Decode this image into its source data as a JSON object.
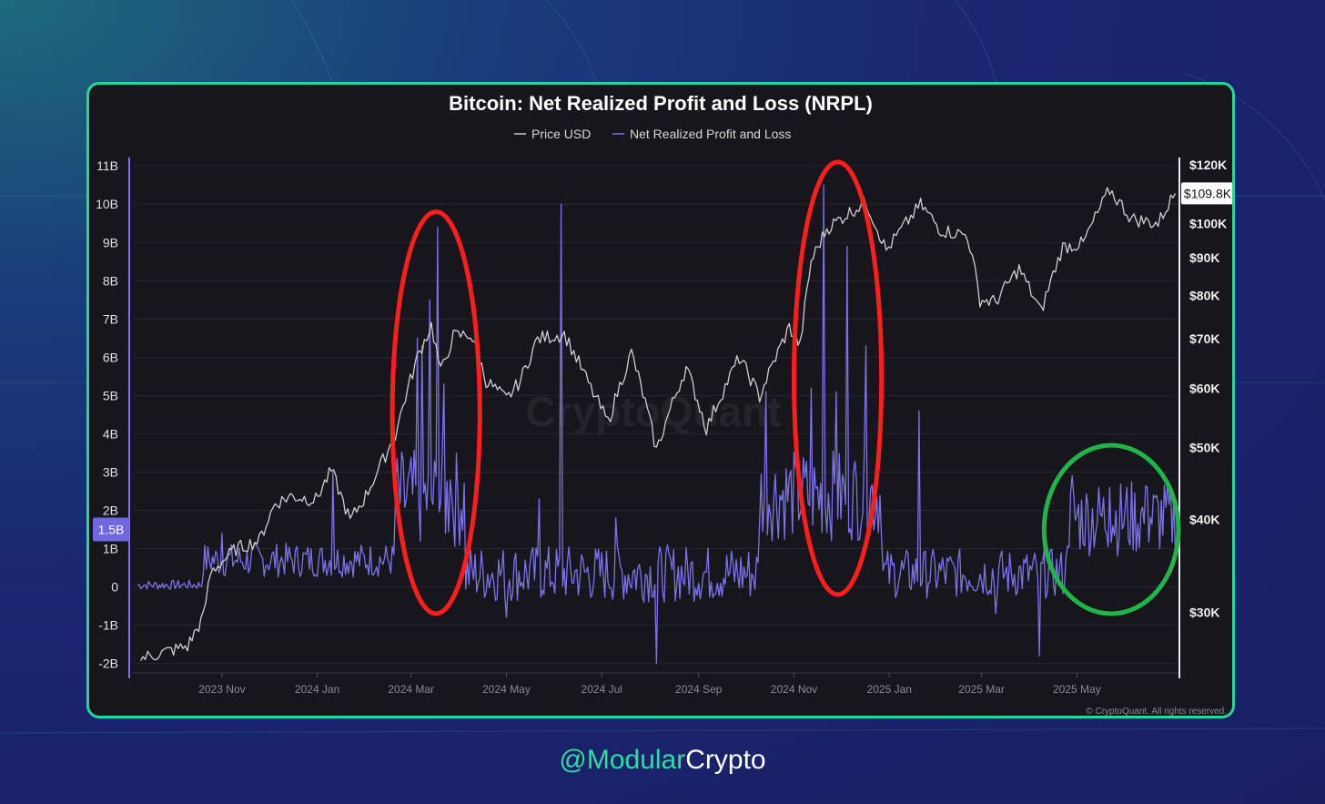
{
  "chart_data": {
    "type": "line",
    "title": "Bitcoin: Net Realized Profit and Loss (NRPL)",
    "legend_position": "top-center",
    "series": [
      {
        "name": "Price USD",
        "color": "#cfcfcf",
        "axis": "right",
        "points": [
          [
            "2023-09-10",
            26000
          ],
          [
            "2023-09-25",
            26500
          ],
          [
            "2023-10-10",
            27000
          ],
          [
            "2023-10-20",
            29500
          ],
          [
            "2023-10-25",
            34000
          ],
          [
            "2023-11-10",
            36500
          ],
          [
            "2023-11-25",
            37500
          ],
          [
            "2023-12-05",
            42000
          ],
          [
            "2023-12-15",
            43000
          ],
          [
            "2023-12-31",
            42500
          ],
          [
            "2024-01-10",
            46500
          ],
          [
            "2024-01-22",
            39800
          ],
          [
            "2024-02-01",
            43000
          ],
          [
            "2024-02-12",
            48000
          ],
          [
            "2024-02-20",
            52000
          ],
          [
            "2024-02-28",
            60000
          ],
          [
            "2024-03-05",
            66000
          ],
          [
            "2024-03-14",
            73000
          ],
          [
            "2024-03-20",
            63000
          ],
          [
            "2024-03-28",
            70500
          ],
          [
            "2024-04-08",
            71000
          ],
          [
            "2024-04-18",
            61500
          ],
          [
            "2024-05-01",
            58000
          ],
          [
            "2024-05-10",
            61500
          ],
          [
            "2024-05-21",
            70000
          ],
          [
            "2024-06-07",
            71000
          ],
          [
            "2024-06-24",
            60000
          ],
          [
            "2024-07-05",
            54000
          ],
          [
            "2024-07-20",
            67000
          ],
          [
            "2024-08-05",
            49500
          ],
          [
            "2024-08-24",
            64000
          ],
          [
            "2024-09-06",
            53000
          ],
          [
            "2024-09-27",
            66000
          ],
          [
            "2024-10-10",
            58500
          ],
          [
            "2024-10-29",
            72500
          ],
          [
            "2024-11-05",
            68500
          ],
          [
            "2024-11-12",
            89000
          ],
          [
            "2024-11-22",
            98500
          ],
          [
            "2024-12-05",
            103000
          ],
          [
            "2024-12-17",
            107000
          ],
          [
            "2024-12-30",
            92000
          ],
          [
            "2025-01-07",
            97000
          ],
          [
            "2025-01-21",
            106000
          ],
          [
            "2025-02-03",
            98000
          ],
          [
            "2025-02-20",
            96500
          ],
          [
            "2025-02-28",
            79000
          ],
          [
            "2025-03-10",
            78500
          ],
          [
            "2025-03-25",
            87000
          ],
          [
            "2025-04-08",
            76000
          ],
          [
            "2025-04-22",
            93000
          ],
          [
            "2025-05-05",
            94000
          ],
          [
            "2025-05-22",
            111000
          ],
          [
            "2025-06-05",
            101500
          ],
          [
            "2025-06-22",
            100000
          ],
          [
            "2025-06-30",
            107500
          ],
          [
            "2025-07-03",
            109800
          ]
        ]
      },
      {
        "name": "Net Realized Profit and Loss",
        "color": "#7b74e8",
        "axis": "left",
        "spikes": [
          [
            "2023-11-01",
            1.4
          ],
          [
            "2024-01-11",
            3.0
          ],
          [
            "2024-03-05",
            6.5
          ],
          [
            "2024-03-08",
            6.3
          ],
          [
            "2024-03-13",
            7.5
          ],
          [
            "2024-03-18",
            9.4
          ],
          [
            "2024-03-22",
            5.3
          ],
          [
            "2024-03-26",
            2.8
          ],
          [
            "2024-05-22",
            2.3
          ],
          [
            "2024-06-05",
            10.0
          ],
          [
            "2024-07-10",
            1.8
          ],
          [
            "2024-10-14",
            5.1
          ],
          [
            "2024-11-12",
            5.2
          ],
          [
            "2024-11-20",
            10.5
          ],
          [
            "2024-11-28",
            5.1
          ],
          [
            "2024-12-05",
            8.9
          ],
          [
            "2024-12-17",
            6.3
          ],
          [
            "2025-01-20",
            4.6
          ],
          [
            "2025-04-28",
            2.9
          ],
          [
            "2025-05-22",
            2.6
          ],
          [
            "2025-06-02",
            2.6
          ],
          [
            "2025-06-15",
            2.6
          ],
          [
            "2025-04-07",
            -1.8
          ],
          [
            "2024-08-05",
            -2.0
          ],
          [
            "2024-05-01",
            -0.8
          ],
          [
            "2025-03-10",
            -0.7
          ]
        ],
        "current_value": 1.5
      }
    ],
    "y_left": {
      "ticks": [
        "11B",
        "10B",
        "9B",
        "8B",
        "7B",
        "6B",
        "5B",
        "4B",
        "3B",
        "2B",
        "1B",
        "0",
        "-1B",
        "-2B"
      ],
      "ylim": [
        -2.2,
        11.1
      ]
    },
    "y_right": {
      "ticks": [
        "$120K",
        "$100K",
        "$90K",
        "$80K",
        "$70K",
        "$60K",
        "$50K",
        "$40K",
        "$30K"
      ],
      "scale": "log",
      "ylim": [
        25000,
        121000
      ]
    },
    "x_ticks": [
      "2023 Nov",
      "2024 Jan",
      "2024 Mar",
      "2024 May",
      "2024 Jul",
      "2024 Sep",
      "2024 Nov",
      "2025 Jan",
      "2025 Mar",
      "2025 May"
    ],
    "current_price_label": "$109.8K",
    "current_nrpl_label": "1.5B",
    "watermark": "CryptoQuant",
    "copyright": "© CryptoQuant. All rights reserved.",
    "annotations": [
      {
        "shape": "ellipse",
        "color": "#ff1e1e",
        "around": "2024 Mar spikes"
      },
      {
        "shape": "ellipse",
        "color": "#ff1e1e",
        "around": "2024 Nov–Dec spikes"
      },
      {
        "shape": "ellipse",
        "color": "#22b34a",
        "around": "2025 May–Jun activity"
      }
    ]
  },
  "footer": {
    "handle_prefix": "@Modular",
    "handle_suffix": "Crypto"
  }
}
